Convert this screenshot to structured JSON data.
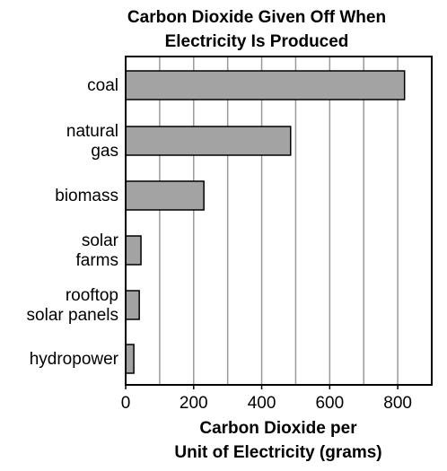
{
  "chart_data": {
    "type": "bar",
    "orientation": "horizontal",
    "title": [
      "Carbon Dioxide Given Off When",
      "Electricity Is Produced"
    ],
    "xlabel": [
      "Carbon Dioxide per",
      "Unit of Electricity (grams)"
    ],
    "ylabel": "",
    "categories": [
      [
        "coal"
      ],
      [
        "natural",
        "gas"
      ],
      [
        "biomass"
      ],
      [
        "solar",
        "farms"
      ],
      [
        "rooftop",
        "solar panels"
      ],
      [
        "hydropower"
      ]
    ],
    "values": [
      820,
      485,
      230,
      45,
      40,
      24
    ],
    "xlim": [
      0,
      900
    ],
    "xticks": [
      0,
      200,
      400,
      600,
      800
    ],
    "grid": "vertical, every 100",
    "grid_step": 100,
    "bar_color": "#a3a3a3"
  }
}
